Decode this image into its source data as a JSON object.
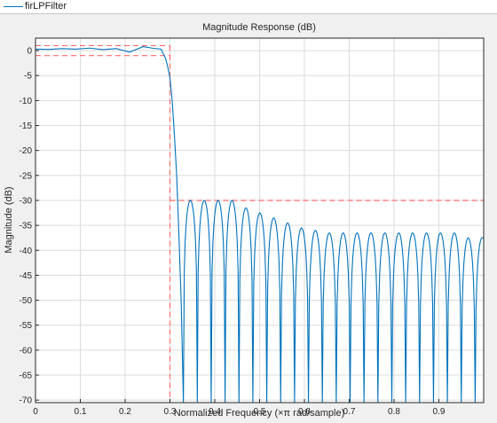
{
  "legend": {
    "label": "firLPFilter",
    "color": "#0072bd"
  },
  "chart_data": {
    "type": "line",
    "title": "Magnitude Response (dB)",
    "xlabel": "Normalized Frequency (×π rad/sample)",
    "ylabel": "Magnitude (dB)",
    "xlim": [
      0,
      1
    ],
    "ylim": [
      -70.5,
      2.5
    ],
    "xticks": [
      0,
      0.1,
      0.2,
      0.3,
      0.4,
      0.5,
      0.6,
      0.7,
      0.8,
      0.9
    ],
    "xtick_labels": [
      "0",
      "0.1",
      "0.2",
      "0.3",
      "0.4",
      "0.5",
      "0.6",
      "0.7",
      "0.8",
      "0.9"
    ],
    "yticks": [
      0,
      -5,
      -10,
      -15,
      -20,
      -25,
      -30,
      -35,
      -40,
      -45,
      -50,
      -55,
      -60,
      -65,
      -70
    ],
    "ytick_labels": [
      "0",
      "-5",
      "-10",
      "-15",
      "-20",
      "-25",
      "-30",
      "-35",
      "-40",
      "-45",
      "-50",
      "-55",
      "-60",
      "-65",
      "-70"
    ],
    "grid": true,
    "legend_position": "top-left",
    "series": [
      {
        "name": "firLPFilter",
        "color": "#0072bd",
        "passband": {
          "x": [
            0,
            0.03,
            0.06,
            0.09,
            0.12,
            0.15,
            0.18,
            0.21,
            0.24,
            0.26,
            0.28
          ],
          "y": [
            0.3,
            0.25,
            0.4,
            0.3,
            0.5,
            0.2,
            0.4,
            -0.3,
            0.8,
            0.5,
            0.3
          ]
        },
        "transition": {
          "x": [
            0.28,
            0.29,
            0.295,
            0.3,
            0.305,
            0.31,
            0.315,
            0.32,
            0.325,
            0.33
          ],
          "y": [
            0.3,
            -1.5,
            -3.2,
            -5.5,
            -10,
            -17,
            -25,
            -37,
            -50,
            -70.5
          ]
        },
        "stopband_lobes": {
          "nulls": [
            0.33,
            0.361,
            0.392,
            0.423,
            0.454,
            0.485,
            0.516,
            0.547,
            0.578,
            0.609,
            0.64,
            0.671,
            0.702,
            0.733,
            0.764,
            0.795,
            0.826,
            0.857,
            0.888,
            0.919,
            0.95,
            0.981
          ],
          "peaks": [
            -30,
            -30,
            -30,
            -30,
            -31.5,
            -32.5,
            -33.5,
            -34.5,
            -35.5,
            -36,
            -36.5,
            -36.5,
            -36.5,
            -36.5,
            -36.5,
            -36.5,
            -36.5,
            -36.5,
            -36.5,
            -36.5,
            -37.5
          ]
        },
        "tail_to_edge": 1.0
      }
    ],
    "constraints": {
      "color": "#ff6a6a",
      "passband_upper_db": 1,
      "passband_lower_db": -1,
      "passband_edge": 0.3,
      "stopband_atten_db": -30
    }
  }
}
